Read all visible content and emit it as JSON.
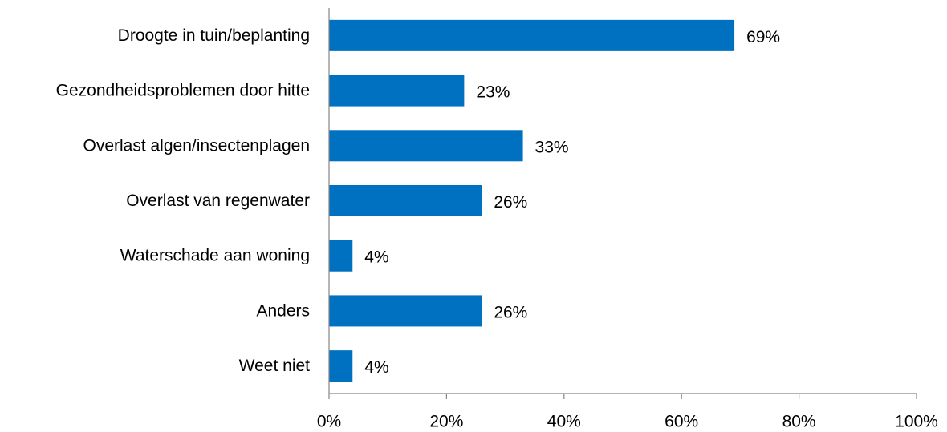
{
  "chart_data": {
    "type": "bar",
    "orientation": "horizontal",
    "categories": [
      "Droogte in tuin/beplanting",
      "Gezondheidsproblemen door hitte",
      "Overlast algen/insectenplagen",
      "Overlast van regenwater",
      "Waterschade aan woning",
      "Anders",
      "Weet niet"
    ],
    "values": [
      69,
      23,
      33,
      26,
      4,
      26,
      4
    ],
    "data_labels": [
      "69%",
      "23%",
      "33%",
      "26%",
      "4%",
      "26%",
      "4%"
    ],
    "xlim": [
      0,
      100
    ],
    "x_ticks": [
      0,
      20,
      40,
      60,
      80,
      100
    ],
    "x_tick_labels": [
      "0%",
      "20%",
      "40%",
      "60%",
      "80%",
      "100%"
    ],
    "title": "",
    "xlabel": "",
    "ylabel": "",
    "grid": false,
    "legend": "none",
    "bar_color": "#0070C0",
    "axis_color": "#868686"
  }
}
